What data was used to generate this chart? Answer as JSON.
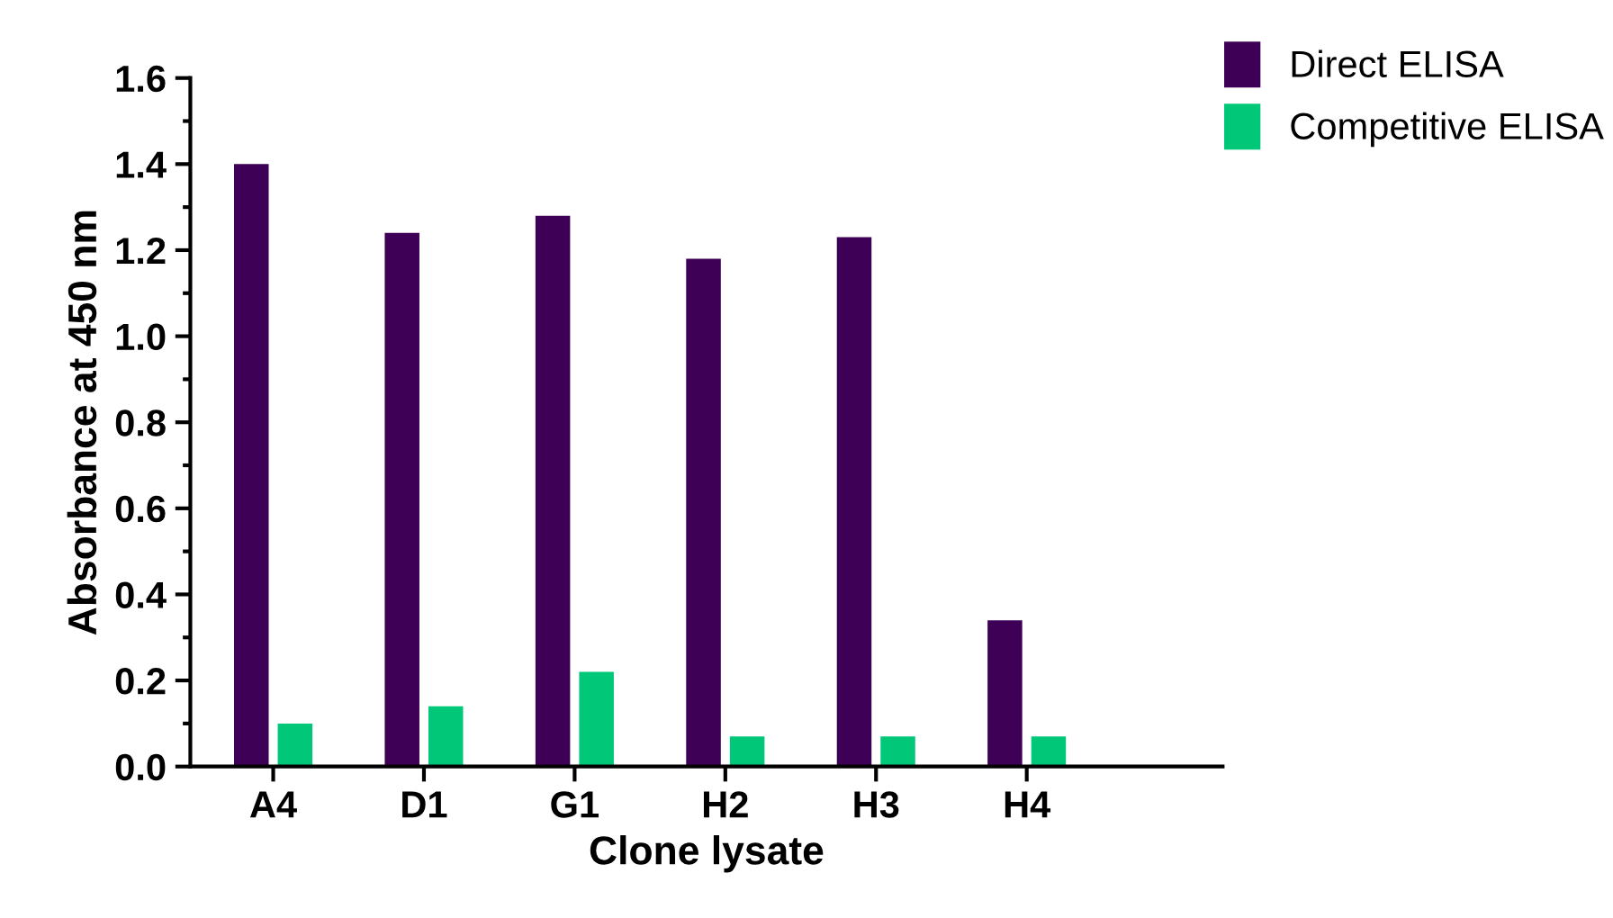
{
  "chart_data": {
    "type": "bar",
    "xlabel": "Clone lysate",
    "ylabel": "Absorbance at 450 nm",
    "categories": [
      "A4",
      "D1",
      "G1",
      "H2",
      "H3",
      "H4"
    ],
    "series": [
      {
        "name": "Direct ELISA",
        "color": "#3d0056",
        "values": [
          1.4,
          1.24,
          1.28,
          1.18,
          1.23,
          0.34
        ]
      },
      {
        "name": "Competitive ELISA",
        "color": "#00c878",
        "values": [
          0.1,
          0.14,
          0.22,
          0.07,
          0.07,
          0.07
        ]
      }
    ],
    "ylim": [
      0,
      1.6
    ],
    "yticks": [
      {
        "value": 0,
        "label": "0.0"
      },
      0.2,
      0.4,
      0.6,
      0.8,
      {
        "value": 1,
        "label": "1.0"
      },
      1.2,
      1.4,
      1.6
    ],
    "grid": false,
    "legend": "top right"
  }
}
